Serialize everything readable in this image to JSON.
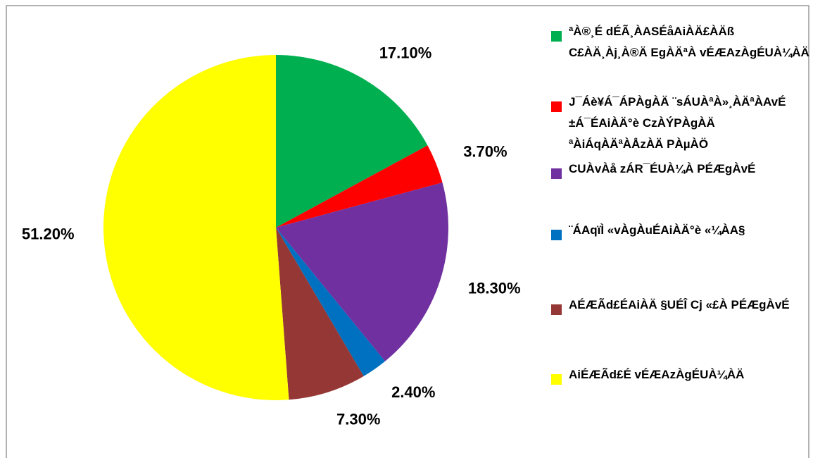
{
  "chart_data": {
    "type": "pie",
    "categories": [
      "ªÀ®¸É dÉÃ¸ÀASÉåAiÀÄ£ÀÄß\nC£ÀÄ¸Àj¸À®Ä EgÀÄªÀ vÉÆAzÀgÉUÀ¼ÀÄ",
      "J¯Áè¥Á¯ÁPÀgÀÄ ¨sÁUÀªÀ»¸ÀÄªÀAvÉ\n±Á¯ÉAiÀÄ°è CzÀÝPÀgÀÄ\nªÀiÁqÀÄªÀÅzÀÄ PÀµÀÖ",
      "CUÀvÀå zÁR¯ÉUÀ¼À PÉÆgÀvÉ",
      "¨ÁAqïÌ «vÀgÀuÉAiÀÄ°è «¼ÀA§",
      "AÉÆÃd£ÉAiÀÄ §UÉÎ Cj «£À PÉÆgÀvÉ",
      "AiÉÆÃd£É vÉÆAzÀgÉUÀ¼ÀÄ"
    ],
    "values": [
      17.1,
      3.7,
      18.3,
      2.4,
      7.3,
      51.2
    ],
    "value_labels": [
      "17.10%",
      "3.70%",
      "18.30%",
      "2.40%",
      "7.30%",
      "51.20%"
    ],
    "colors": [
      "#00b050",
      "#ff0000",
      "#7030a0",
      "#0070c0",
      "#953735",
      "#ffff00"
    ],
    "legend": "right"
  }
}
